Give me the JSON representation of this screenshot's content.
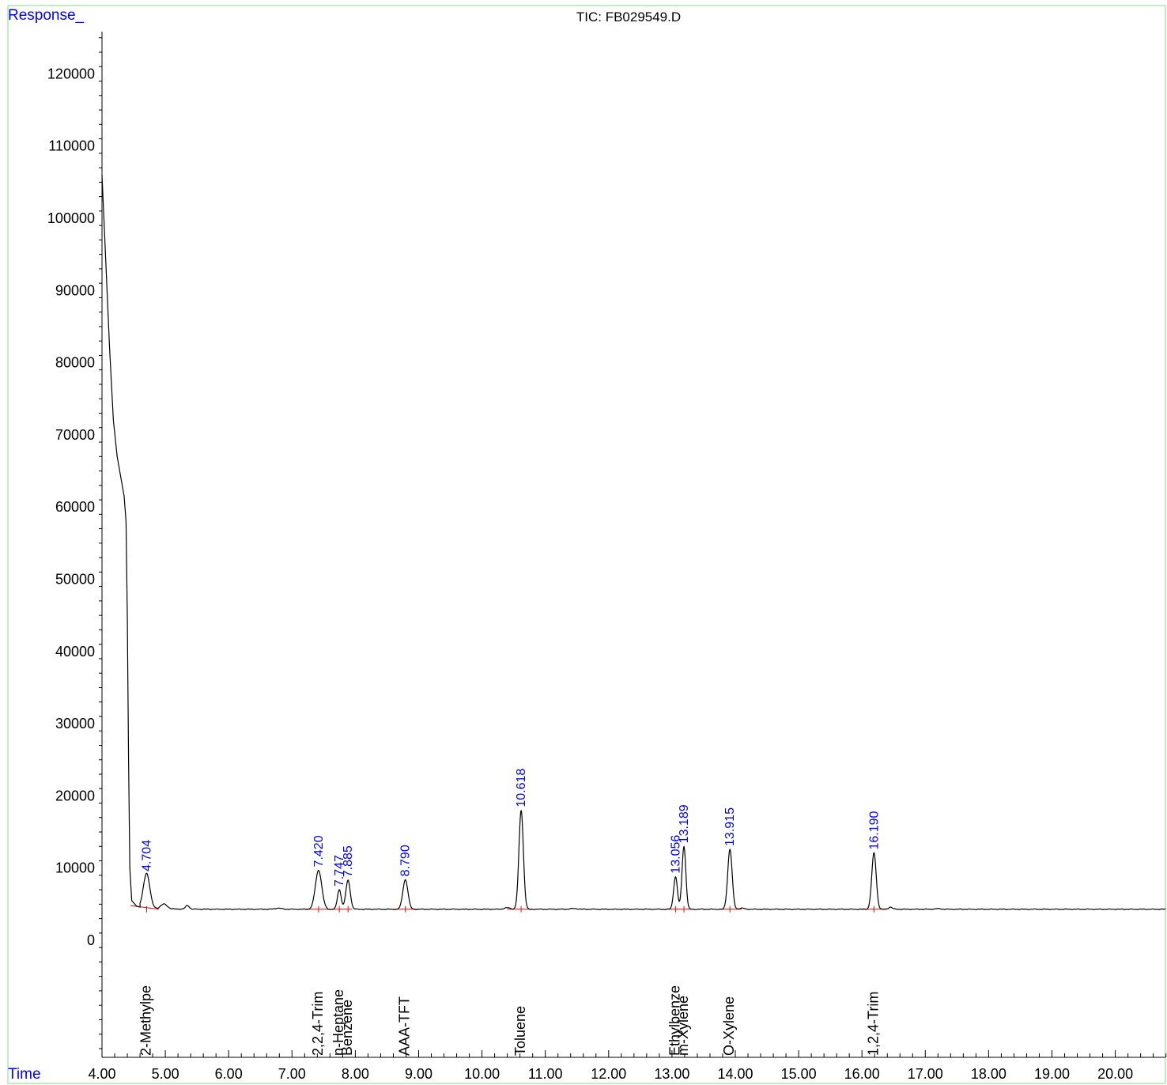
{
  "chart_data": {
    "type": "line",
    "title": "TIC: FB029549.D",
    "ylabel": "Response_",
    "xlabel": "Time",
    "xlim": [
      4.0,
      20.9
    ],
    "ylim": [
      -19000,
      126000
    ],
    "x_ticks": [
      4,
      5,
      6,
      7,
      8,
      9,
      10,
      11,
      12,
      13,
      14,
      15,
      16,
      17,
      18,
      19,
      20
    ],
    "x_tick_labels": [
      "4.00",
      "5.00",
      "6.00",
      "7.00",
      "8.00",
      "9.00",
      "10.00",
      "11.00",
      "12.00",
      "13.00",
      "14.00",
      "15.00",
      "16.00",
      "17.00",
      "18.00",
      "19.00",
      "20.00"
    ],
    "y_ticks": [
      0,
      10000,
      20000,
      30000,
      40000,
      50000,
      60000,
      70000,
      80000,
      90000,
      100000,
      110000,
      120000
    ],
    "y_tick_labels": [
      "0",
      "10000",
      "20000",
      "30000",
      "40000",
      "50000",
      "60000",
      "70000",
      "80000",
      "90000",
      "100000",
      "110000",
      "120000"
    ],
    "baseline": 4300,
    "solvent_front": [
      {
        "x": 4.0,
        "y": 106000
      },
      {
        "x": 4.03,
        "y": 100000
      },
      {
        "x": 4.08,
        "y": 90000
      },
      {
        "x": 4.12,
        "y": 82000
      },
      {
        "x": 4.15,
        "y": 77000
      },
      {
        "x": 4.18,
        "y": 72000
      },
      {
        "x": 4.24,
        "y": 67000
      },
      {
        "x": 4.3,
        "y": 64000
      },
      {
        "x": 4.35,
        "y": 61500
      },
      {
        "x": 4.38,
        "y": 58000
      },
      {
        "x": 4.4,
        "y": 45000
      },
      {
        "x": 4.42,
        "y": 25000
      },
      {
        "x": 4.44,
        "y": 10000
      },
      {
        "x": 4.47,
        "y": 5500
      },
      {
        "x": 4.55,
        "y": 4700
      },
      {
        "x": 4.6,
        "y": 4600
      }
    ],
    "peaks": [
      {
        "rt": 4.704,
        "rt_label": "4.704",
        "height": 9100,
        "width": 0.05,
        "compound": "2-Methylpe"
      },
      {
        "rt": 7.42,
        "rt_label": "7.420",
        "height": 9700,
        "width": 0.05,
        "compound": "2,2,4-Trim"
      },
      {
        "rt": 7.747,
        "rt_label": "7.747",
        "height": 7000,
        "width": 0.03,
        "compound": "n-Heptane"
      },
      {
        "rt": 7.885,
        "rt_label": "7.885",
        "height": 8300,
        "width": 0.035,
        "compound": "Benzene"
      },
      {
        "rt": 8.79,
        "rt_label": "8.790",
        "height": 8400,
        "width": 0.04,
        "compound": "AAA-TFT"
      },
      {
        "rt": 10.618,
        "rt_label": "10.618",
        "height": 18000,
        "width": 0.035,
        "compound": "Toluene"
      },
      {
        "rt": 13.056,
        "rt_label": "13.056",
        "height": 8800,
        "width": 0.03,
        "compound": "Ethylbenze"
      },
      {
        "rt": 13.189,
        "rt_label": "13.189",
        "height": 13000,
        "width": 0.03,
        "compound": "m-Xylene"
      },
      {
        "rt": 13.915,
        "rt_label": "13.915",
        "height": 12600,
        "width": 0.035,
        "compound": "O-Xylene"
      },
      {
        "rt": 16.19,
        "rt_label": "16.190",
        "height": 12100,
        "width": 0.035,
        "compound": "1,2,4-Trim"
      }
    ],
    "minor_bumps": [
      {
        "rt": 4.98,
        "height": 4950,
        "width": 0.05
      },
      {
        "rt": 5.35,
        "height": 4800,
        "width": 0.03
      },
      {
        "rt": 6.78,
        "height": 4450,
        "width": 0.05
      },
      {
        "rt": 10.4,
        "height": 4500,
        "width": 0.05
      },
      {
        "rt": 11.45,
        "height": 4400,
        "width": 0.05
      },
      {
        "rt": 14.1,
        "height": 4450,
        "width": 0.04
      },
      {
        "rt": 16.45,
        "height": 4600,
        "width": 0.03
      },
      {
        "rt": 17.2,
        "height": 4380,
        "width": 0.05
      }
    ],
    "integration_baselines": [
      {
        "x1": 4.45,
        "y1": 4800,
        "x2": 4.9,
        "y2": 4300
      },
      {
        "x1": 7.2,
        "y1": 4300,
        "x2": 7.95,
        "y2": 4300
      },
      {
        "x1": 8.6,
        "y1": 4300,
        "x2": 9.0,
        "y2": 4300
      },
      {
        "x1": 10.4,
        "y1": 4300,
        "x2": 10.8,
        "y2": 4300
      },
      {
        "x1": 12.9,
        "y1": 4300,
        "x2": 13.35,
        "y2": 4300
      },
      {
        "x1": 13.75,
        "y1": 4300,
        "x2": 14.1,
        "y2": 4300
      },
      {
        "x1": 16.0,
        "y1": 4300,
        "x2": 16.4,
        "y2": 4300
      }
    ],
    "grid": false,
    "line_color": "#000000",
    "integration_color": "#ff0000",
    "label_color": "#0000ff",
    "frame_color": "#7fe07f"
  }
}
